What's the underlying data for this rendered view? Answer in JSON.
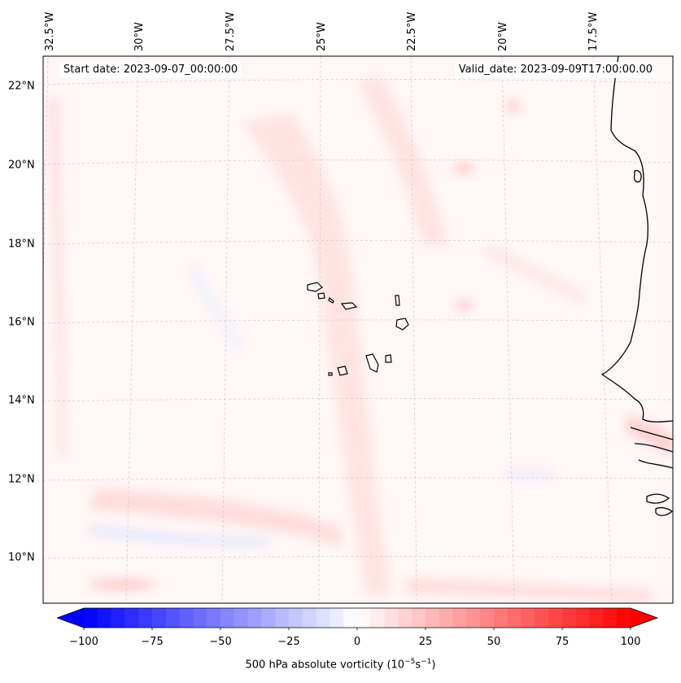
{
  "map": {
    "start_date": "Start date: 2023-09-07_00:00:00",
    "valid_date": "Valid_date: 2023-09-09T17:00:00.00",
    "lat_labels": [
      "22°N",
      "20°N",
      "18°N",
      "16°N",
      "14°N",
      "12°N",
      "10°N"
    ],
    "lon_labels": [
      "32.5°W",
      "30°W",
      "27.5°W",
      "25°W",
      "22.5°W",
      "20°W",
      "17.5°W"
    ],
    "background_color": "#fff5f5",
    "coast_color": "#000000"
  },
  "colorbar": {
    "ticks": [
      "−100",
      "−75",
      "−50",
      "−25",
      "0",
      "25",
      "50",
      "75",
      "100"
    ],
    "min": -100,
    "max": 100,
    "low_color": "#0000ff",
    "mid_color": "#ffffff",
    "high_color": "#ff0000",
    "title": "500 hPa absolute vorticity (10",
    "title_exp1": "−5",
    "title_mid": "s",
    "title_exp2": "−1",
    "title_end": ")"
  }
}
